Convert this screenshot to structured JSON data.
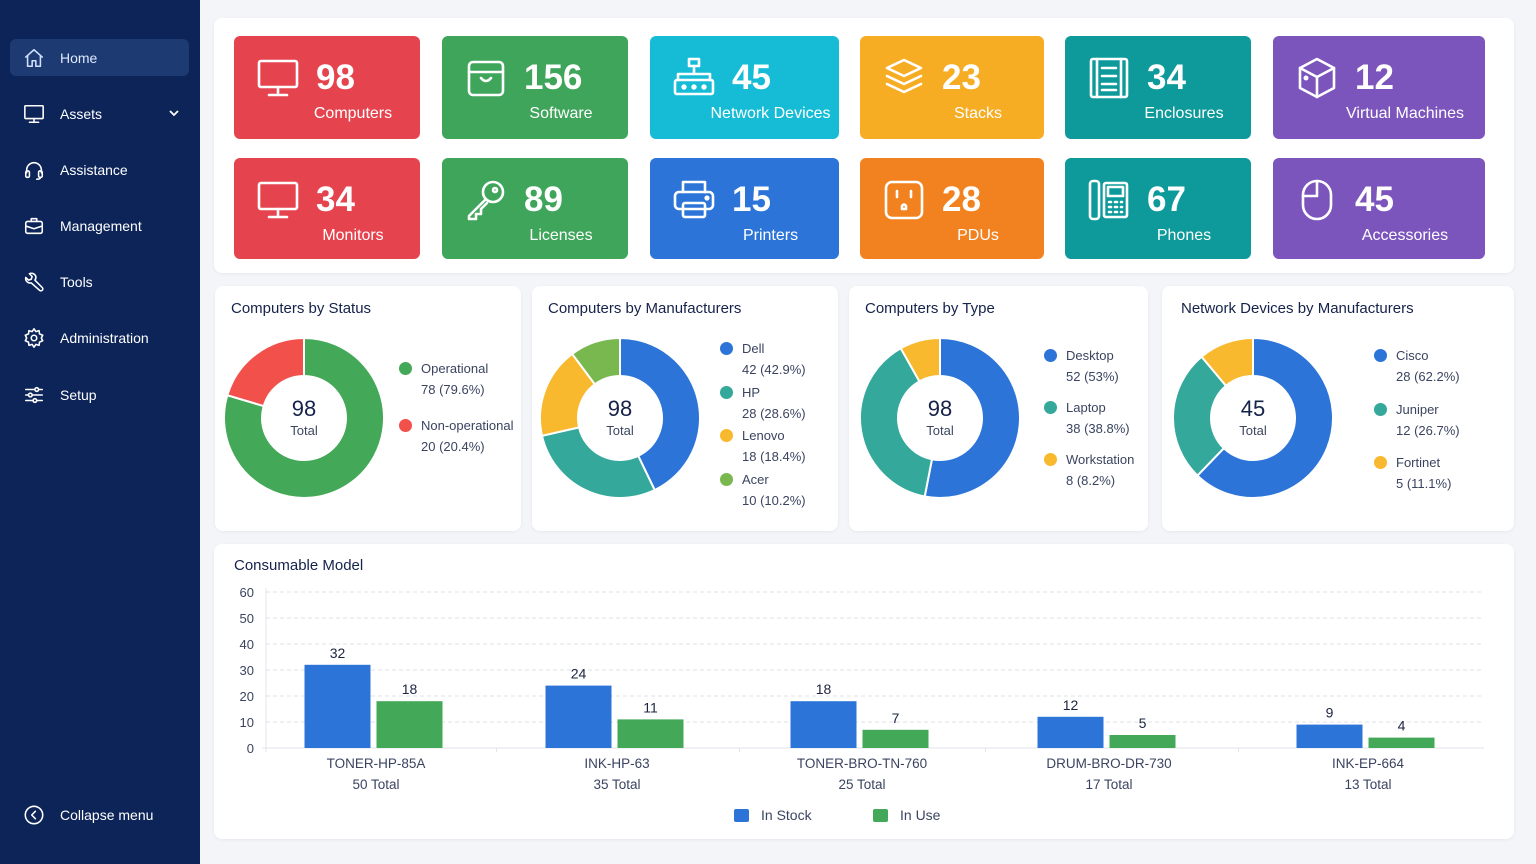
{
  "sidebar": {
    "items": [
      {
        "label": "Home",
        "icon": "home-icon",
        "active": true
      },
      {
        "label": "Assets",
        "icon": "monitor-icon",
        "has_submenu": true
      },
      {
        "label": "Assistance",
        "icon": "headset-icon"
      },
      {
        "label": "Management",
        "icon": "briefcase-icon"
      },
      {
        "label": "Tools",
        "icon": "wrench-icon"
      },
      {
        "label": "Administration",
        "icon": "gear-icon"
      },
      {
        "label": "Setup",
        "icon": "sliders-icon"
      }
    ],
    "collapse_label": "Collapse menu"
  },
  "tiles": [
    {
      "value": "98",
      "label": "Computers",
      "icon": "monitor-icon",
      "color": "#e5444f"
    },
    {
      "value": "156",
      "label": "Software",
      "icon": "box-icon",
      "color": "#3ea55a"
    },
    {
      "value": "45",
      "label": "Network Devices",
      "icon": "network-icon",
      "color": "#16bcd6"
    },
    {
      "value": "23",
      "label": "Stacks",
      "icon": "layers-icon",
      "color": "#f6ad24"
    },
    {
      "value": "34",
      "label": "Enclosures",
      "icon": "enclosure-icon",
      "color": "#0e9a9a"
    },
    {
      "value": "12",
      "label": "Virtual Machines",
      "icon": "cube-icon",
      "color": "#7c55bc"
    },
    {
      "value": "34",
      "label": "Monitors",
      "icon": "monitor-icon",
      "color": "#e5444f"
    },
    {
      "value": "89",
      "label": "Licenses",
      "icon": "key-icon",
      "color": "#3ea55a"
    },
    {
      "value": "15",
      "label": "Printers",
      "icon": "printer-icon",
      "color": "#2d74d8"
    },
    {
      "value": "28",
      "label": "PDUs",
      "icon": "outlet-icon",
      "color": "#f2821f"
    },
    {
      "value": "67",
      "label": "Phones",
      "icon": "phone-icon",
      "color": "#0e9a9a"
    },
    {
      "value": "45",
      "label": "Accessories",
      "icon": "mouse-icon",
      "color": "#7c55bc"
    }
  ],
  "chart_data": [
    {
      "type": "pie",
      "title": "Computers by Status",
      "center_value": "98",
      "center_label": "Total",
      "slices": [
        {
          "name": "Operational",
          "value": 78,
          "detail": "78 (79.6%)",
          "color": "#43a857"
        },
        {
          "name": "Non-operational",
          "value": 20,
          "detail": "20 (20.4%)",
          "color": "#f2504a"
        }
      ]
    },
    {
      "type": "pie",
      "title": "Computers by Manufacturers",
      "center_value": "98",
      "center_label": "Total",
      "slices": [
        {
          "name": "Dell",
          "value": 42,
          "detail": "42 (42.9%)",
          "color": "#2d74d8"
        },
        {
          "name": "HP",
          "value": 28,
          "detail": "28 (28.6%)",
          "color": "#34a89a"
        },
        {
          "name": "Lenovo",
          "value": 18,
          "detail": "18 (18.4%)",
          "color": "#f9b92e"
        },
        {
          "name": "Acer",
          "value": 10,
          "detail": "10 (10.2%)",
          "color": "#79b84e"
        }
      ]
    },
    {
      "type": "pie",
      "title": "Computers by Type",
      "center_value": "98",
      "center_label": "Total",
      "slices": [
        {
          "name": "Desktop",
          "value": 52,
          "detail": "52 (53%)",
          "color": "#2d74d8"
        },
        {
          "name": "Laptop",
          "value": 38,
          "detail": "38 (38.8%)",
          "color": "#34a89a"
        },
        {
          "name": "Workstation",
          "value": 8,
          "detail": "8 (8.2%)",
          "color": "#f9b92e"
        }
      ]
    },
    {
      "type": "pie",
      "title": "Network Devices by Manufacturers",
      "center_value": "45",
      "center_label": "Total",
      "slices": [
        {
          "name": "Cisco",
          "value": 28,
          "detail": "28 (62.2%)",
          "color": "#2d74d8"
        },
        {
          "name": "Juniper",
          "value": 12,
          "detail": "12 (26.7%)",
          "color": "#34a89a"
        },
        {
          "name": "Fortinet",
          "value": 5,
          "detail": "5 (11.1%)",
          "color": "#f9b92e"
        }
      ]
    },
    {
      "type": "bar",
      "title": "Consumable Model",
      "categories": [
        "TONER-HP-85A",
        "INK-HP-63",
        "TONER-BRO-TN-760",
        "DRUM-BRO-DR-730",
        "INK-EP-664"
      ],
      "category_totals": [
        "50 Total",
        "35 Total",
        "25 Total",
        "17 Total",
        "13 Total"
      ],
      "series": [
        {
          "name": "In Stock",
          "values": [
            32,
            24,
            18,
            12,
            9
          ],
          "color": "#2d74d8"
        },
        {
          "name": "In Use",
          "values": [
            18,
            11,
            7,
            5,
            4
          ],
          "color": "#43a857"
        }
      ],
      "yticks": [
        0,
        10,
        20,
        30,
        40,
        50,
        60
      ],
      "ylim": [
        0,
        60
      ],
      "grid": true,
      "legend": "bottom-center"
    }
  ]
}
